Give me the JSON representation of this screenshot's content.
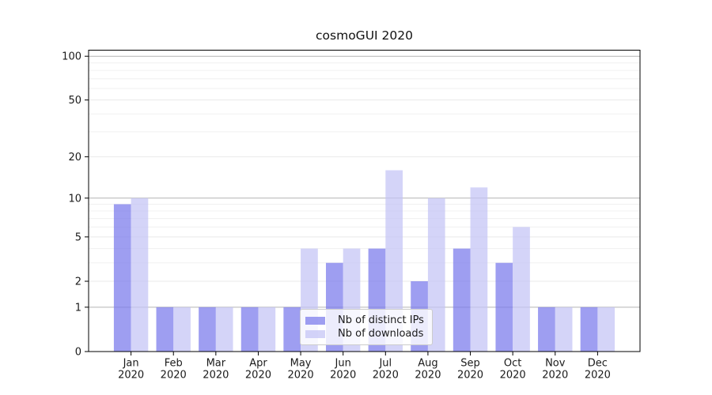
{
  "title": "cosmoGUI 2020",
  "legend": {
    "items": [
      {
        "label": "Nb of distinct IPs"
      },
      {
        "label": "Nb of downloads"
      }
    ]
  },
  "chart_data": {
    "type": "bar",
    "title": "cosmoGUI 2020",
    "categories": [
      "Jan",
      "Feb",
      "Mar",
      "Apr",
      "May",
      "Jun",
      "Jul",
      "Aug",
      "Sep",
      "Oct",
      "Nov",
      "Dec"
    ],
    "x_year_label": "2020",
    "series": [
      {
        "name": "Nb of distinct IPs",
        "color": "rgba(121,121,235,0.72)",
        "values": [
          9,
          1,
          1,
          1,
          1,
          3,
          4,
          2,
          4,
          3,
          1,
          1
        ]
      },
      {
        "name": "Nb of downloads",
        "color": "rgba(196,196,245,0.72)",
        "values": [
          10,
          1,
          1,
          1,
          4,
          4,
          16,
          10,
          12,
          6,
          1,
          1
        ]
      }
    ],
    "yscale": "log1p",
    "ylim": [
      0,
      110
    ],
    "ytick_values": [
      0,
      1,
      2,
      5,
      10,
      20,
      50,
      100
    ],
    "ytick_labels": [
      "0",
      "1",
      "2",
      "5",
      "10",
      "20",
      "50",
      "100"
    ],
    "minor_gridline_values": [
      3,
      4,
      6,
      7,
      8,
      9,
      30,
      40,
      60,
      70,
      80,
      90
    ],
    "grid": true,
    "legend_position": "lower center",
    "colors": {
      "grid_decade": "#b4b4b4",
      "grid_light": "#e9e9e9",
      "grid_minor": "#f0f0f0",
      "axis": "#000000",
      "background": "#ffffff"
    }
  }
}
